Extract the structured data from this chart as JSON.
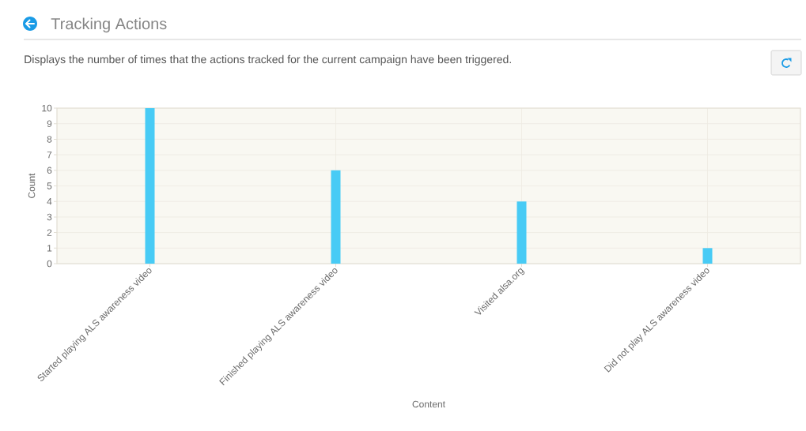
{
  "chart_data": {
    "type": "bar",
    "title": "Tracking Actions",
    "subtitle": "Displays the number of times that the actions tracked for the current campaign have been triggered.",
    "xlabel": "Content",
    "ylabel": "Count",
    "categories": [
      "Started playing ALS awareness video",
      "Finished playing ALS awareness video",
      "Visited alsa.org",
      "Did not play ALS awareness video"
    ],
    "values": [
      10,
      6,
      4,
      1
    ],
    "color": "#48cbf5",
    "ylim": [
      0,
      10
    ],
    "yticks": [
      0,
      1,
      2,
      3,
      4,
      5,
      6,
      7,
      8,
      9,
      10
    ],
    "grid": true
  }
}
